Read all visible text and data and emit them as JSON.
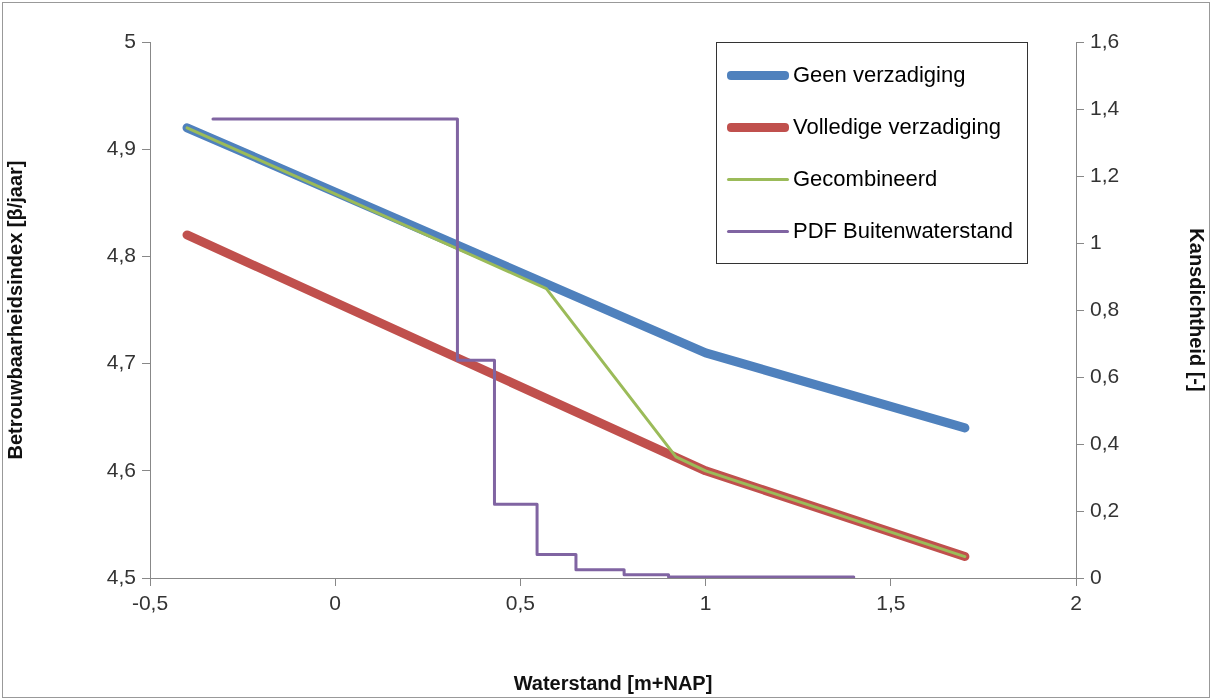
{
  "chart_data": {
    "type": "line",
    "xlabel": "Waterstand [m+NAP]",
    "ylabel": "Betrouwbaarheidsindex [β/jaar]",
    "y2label": "Kansdichtheid [-]",
    "xlim": [
      -0.5,
      2
    ],
    "xticks": [
      {
        "value": -0.5,
        "label": "-0,5"
      },
      0,
      {
        "value": 0.5,
        "label": "0,5"
      },
      1,
      {
        "value": 1.5,
        "label": "1,5"
      },
      2
    ],
    "ylim": [
      4.5,
      5
    ],
    "yticks": [
      {
        "value": 4.5,
        "label": "4,5"
      },
      {
        "value": 4.6,
        "label": "4,6"
      },
      {
        "value": 4.7,
        "label": "4,7"
      },
      {
        "value": 4.8,
        "label": "4,8"
      },
      {
        "value": 4.9,
        "label": "4,9"
      },
      5
    ],
    "y2lim": [
      0,
      1.6
    ],
    "y2ticks": [
      0,
      {
        "value": 0.2,
        "label": "0,2"
      },
      {
        "value": 0.4,
        "label": "0,4"
      },
      {
        "value": 0.6,
        "label": "0,6"
      },
      {
        "value": 0.8,
        "label": "0,8"
      },
      1,
      {
        "value": 1.2,
        "label": "1,2"
      },
      {
        "value": 1.4,
        "label": "1,4"
      },
      {
        "value": 1.6,
        "label": "1,6"
      }
    ],
    "grid": false,
    "legend": "top right",
    "marker": "none",
    "line_style": "solid",
    "series": [
      {
        "name": "Geen verzadiging",
        "color": "#4f81bd",
        "x": [
          -0.4,
          1.0,
          1.7
        ],
        "values": [
          4.92,
          4.71,
          4.64
        ]
      },
      {
        "name": "Volledige verzadiging",
        "color": "#c0504d",
        "x": [
          -0.4,
          1.0,
          1.7
        ],
        "values": [
          4.82,
          4.6,
          4.52
        ]
      },
      {
        "name": "Gecombineerd",
        "color": "#9bbb59",
        "x": [
          -0.4,
          0.57,
          0.92,
          1.0,
          1.7
        ],
        "values": [
          4.92,
          4.77,
          4.613,
          4.6,
          4.52
        ]
      },
      {
        "name": "PDF Buitenwaterstand",
        "type": "step",
        "axis": "y2",
        "color": "#8064a2",
        "x": [
          -0.33,
          0.33,
          0.43,
          0.545,
          0.65,
          0.78,
          0.9,
          1.4
        ],
        "values": [
          1.37,
          0.65,
          0.22,
          0.07,
          0.025,
          0.01,
          0.003,
          0.003
        ]
      }
    ]
  }
}
